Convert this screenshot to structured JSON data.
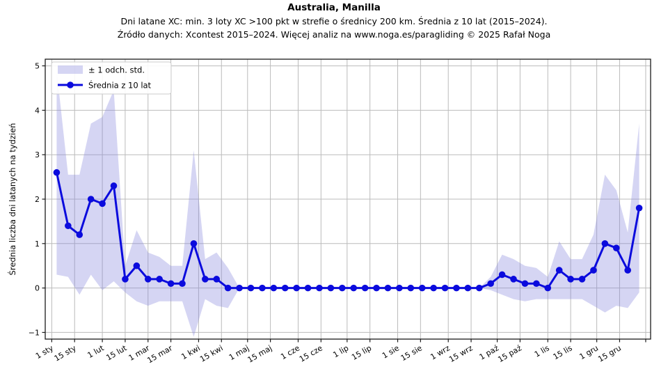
{
  "chart_data": {
    "type": "line",
    "title": "Australia, Manilla",
    "subtitle": "Dni latane XC: min. 3 loty XC >100 pkt w strefie o średnicy 200 km. Średnia z 10 lat (2015–2024).",
    "source": "Źródło danych: Xcontest 2015–2024. Więcej analiz na www.noga.es/paragliding © 2025 Rafał Noga",
    "ylabel": "Średnia liczba dni latanych na tydzień",
    "xlabel": "",
    "grid": true,
    "legend_position": "upper-left",
    "legend": [
      {
        "type": "band",
        "label": "± 1 odch. std."
      },
      {
        "type": "line",
        "label": "Średnia z 10 lat"
      }
    ],
    "ylim": [
      -1.15,
      5.15
    ],
    "yticks": [
      -1,
      0,
      1,
      2,
      3,
      4,
      5
    ],
    "xlim_days": [
      -4,
      367
    ],
    "x_tick_days": [
      0,
      14,
      31,
      45,
      59,
      73,
      90,
      104,
      120,
      134,
      151,
      165,
      181,
      195,
      212,
      226,
      243,
      257,
      273,
      287,
      304,
      318,
      334,
      348,
      364
    ],
    "x_tick_labels": [
      "1 sty",
      "15 sty",
      "1 lut",
      "15 lut",
      "1 mar",
      "15 mar",
      "1 kwi",
      "15 kwi",
      "1 maj",
      "15 maj",
      "1 cze",
      "15 cze",
      "1 lip",
      "15 lip",
      "1 sie",
      "15 sie",
      "1 wrz",
      "15 wrz",
      "1 paź",
      "15 paź",
      "1 lis",
      "15 lis",
      "1 gru",
      "15 gru",
      ""
    ],
    "x_start_day": 3,
    "x_step_days": 7,
    "series": [
      {
        "name": "Średnia z 10 lat",
        "values": [
          2.6,
          1.4,
          1.2,
          2.0,
          1.9,
          2.3,
          0.2,
          0.5,
          0.2,
          0.2,
          0.1,
          0.1,
          1.0,
          0.2,
          0.2,
          0.0,
          0,
          0,
          0,
          0,
          0,
          0,
          0,
          0,
          0,
          0,
          0,
          0,
          0,
          0,
          0,
          0,
          0,
          0,
          0,
          0,
          0,
          0,
          0.1,
          0.3,
          0.2,
          0.1,
          0.1,
          0.0,
          0.4,
          0.2,
          0.2,
          0.4,
          1.0,
          0.9,
          0.4,
          1.8
        ]
      },
      {
        "name": "± 1 odch. std.",
        "values": [
          2.3,
          1.15,
          1.35,
          1.7,
          1.95,
          2.15,
          0.3,
          0.8,
          0.6,
          0.5,
          0.4,
          0.4,
          2.1,
          0.45,
          0.6,
          0.45,
          0,
          0,
          0,
          0,
          0,
          0,
          0,
          0,
          0,
          0,
          0,
          0,
          0,
          0,
          0,
          0,
          0,
          0,
          0,
          0,
          0,
          0,
          0.15,
          0.45,
          0.45,
          0.4,
          0.35,
          0.25,
          0.65,
          0.45,
          0.45,
          0.8,
          1.55,
          1.3,
          0.85,
          1.9
        ]
      }
    ],
    "colors": {
      "line": "#0b0bdd",
      "band_fill": "#8888dd",
      "band_opacity": 0.35,
      "grid": "#bbbbbb",
      "spine": "#1a1a1a",
      "text": "#000000",
      "legend_border": "#cccccc"
    }
  }
}
